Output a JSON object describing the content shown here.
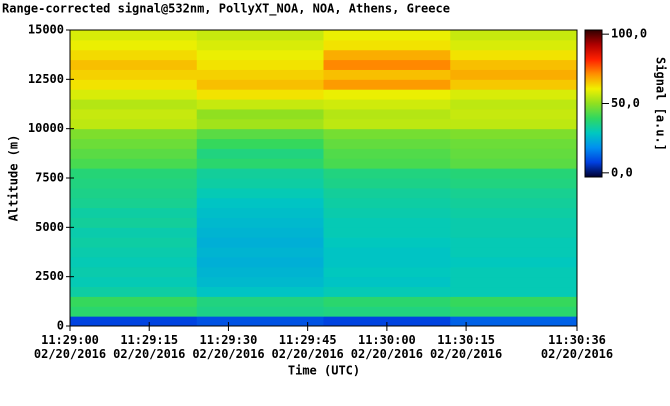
{
  "chart_data": {
    "type": "heatmap",
    "title": "Range-corrected signal@532nm, PollyXT_NOA, NOA, Athens, Greece",
    "x_label": "Time (UTC)",
    "y_label": "Altitude (m)",
    "colorbar_label": "Signal [a.u.]",
    "x": [
      0,
      24,
      48,
      72,
      96
    ],
    "y": [
      0,
      500,
      1000,
      1500,
      2000,
      2500,
      3000,
      3500,
      4000,
      4500,
      5000,
      5500,
      6000,
      6500,
      7000,
      7500,
      8000,
      8500,
      9000,
      9500,
      10000,
      10500,
      11000,
      11500,
      12000,
      12500,
      13000,
      13500,
      14000,
      14500,
      15000
    ],
    "z": [
      [
        8,
        10,
        8,
        12
      ],
      [
        38,
        35,
        36,
        38
      ],
      [
        40,
        36,
        38,
        40
      ],
      [
        32,
        28,
        30,
        30
      ],
      [
        30,
        26,
        28,
        30
      ],
      [
        31,
        25,
        29,
        30
      ],
      [
        30,
        24,
        28,
        29
      ],
      [
        31,
        25,
        28,
        30
      ],
      [
        32,
        24,
        29,
        30
      ],
      [
        31,
        25,
        30,
        31
      ],
      [
        33,
        26,
        30,
        31
      ],
      [
        32,
        27,
        31,
        32
      ],
      [
        34,
        28,
        32,
        33
      ],
      [
        35,
        30,
        33,
        34
      ],
      [
        36,
        32,
        35,
        36
      ],
      [
        37,
        33,
        36,
        37
      ],
      [
        42,
        38,
        42,
        44
      ],
      [
        44,
        36,
        43,
        45
      ],
      [
        46,
        40,
        45,
        46
      ],
      [
        48,
        44,
        47,
        48
      ],
      [
        55,
        52,
        55,
        55
      ],
      [
        56,
        50,
        54,
        56
      ],
      [
        54,
        56,
        57,
        55
      ],
      [
        58,
        62,
        60,
        58
      ],
      [
        62,
        66,
        70,
        65
      ],
      [
        64,
        64,
        66,
        68
      ],
      [
        66,
        62,
        72,
        66
      ],
      [
        63,
        60,
        68,
        62
      ],
      [
        60,
        58,
        62,
        58
      ],
      [
        58,
        56,
        60,
        56
      ]
    ],
    "xlim": [
      0,
      96
    ],
    "ylim": [
      0,
      15000
    ],
    "clim": [
      -3,
      103
    ],
    "xticks": [
      {
        "value": 0,
        "label": "11:29:00\n02/20/2016"
      },
      {
        "value": 15,
        "label": "11:29:15\n02/20/2016"
      },
      {
        "value": 30,
        "label": "11:29:30\n02/20/2016"
      },
      {
        "value": 45,
        "label": "11:29:45\n02/20/2016"
      },
      {
        "value": 60,
        "label": "11:30:00\n02/20/2016"
      },
      {
        "value": 75,
        "label": "11:30:15\n02/20/2016"
      },
      {
        "value": 96,
        "label": "11:30:36\n02/20/2016"
      }
    ],
    "yticks": [
      0,
      2500,
      5000,
      7500,
      10000,
      12500,
      15000
    ],
    "cticks": [
      {
        "value": 0,
        "label": "0,0"
      },
      {
        "value": 50,
        "label": "50,0"
      },
      {
        "value": 100,
        "label": "100,0"
      }
    ],
    "colormap": [
      "#000030",
      "#0040e0",
      "#0090f0",
      "#00c8c0",
      "#30d860",
      "#90e020",
      "#f0f000",
      "#ff9000",
      "#ff2000",
      "#b00000",
      "#300000"
    ]
  }
}
